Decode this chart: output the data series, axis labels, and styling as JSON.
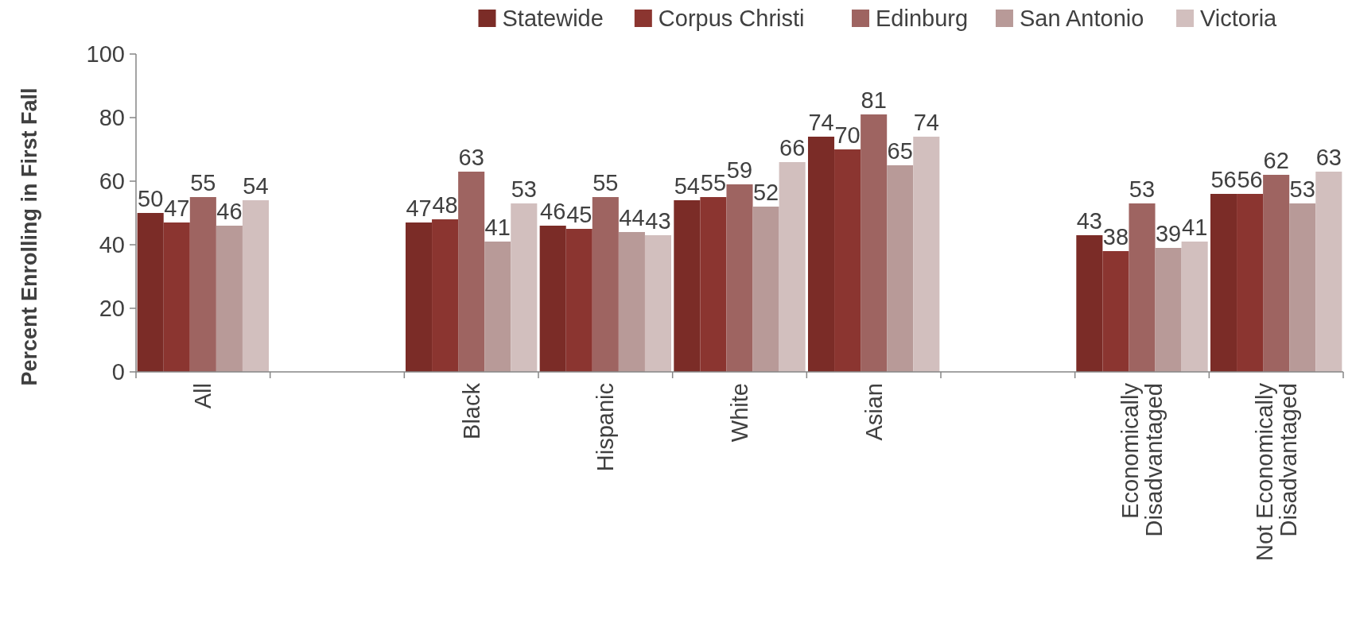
{
  "chart_data": {
    "type": "bar",
    "ylabel": "Percent Enrolling in First Fall",
    "categories": [
      "All",
      null,
      "Black",
      "Hispanic",
      "White",
      "Asian",
      null,
      "Economically Disadvantaged",
      "Not Economically Disadvantaged"
    ],
    "series": [
      {
        "name": "Statewide",
        "color": "#7b2c27",
        "values": [
          50,
          null,
          47,
          46,
          54,
          74,
          null,
          43,
          56
        ]
      },
      {
        "name": "Corpus Christi",
        "color": "#8b3530",
        "values": [
          47,
          null,
          48,
          45,
          55,
          70,
          null,
          38,
          56
        ]
      },
      {
        "name": "Edinburg",
        "color": "#9e6461",
        "values": [
          55,
          null,
          63,
          55,
          59,
          81,
          null,
          53,
          62
        ]
      },
      {
        "name": "San Antonio",
        "color": "#b89a98",
        "values": [
          46,
          null,
          41,
          44,
          52,
          65,
          null,
          39,
          53
        ]
      },
      {
        "name": "Victoria",
        "color": "#d2bfbe",
        "values": [
          54,
          null,
          53,
          43,
          66,
          74,
          null,
          41,
          63
        ]
      }
    ],
    "ylim": [
      0,
      100
    ],
    "yticks": [
      0,
      20,
      40,
      60,
      80,
      100
    ],
    "grid": false,
    "legend": "top",
    "data_labels": true
  }
}
